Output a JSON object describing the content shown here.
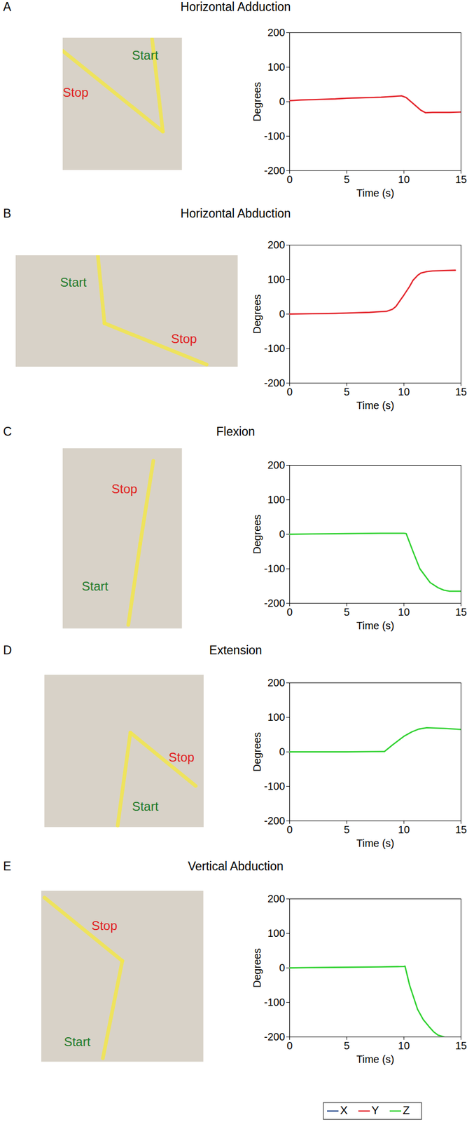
{
  "chart_data": [
    {
      "type": "line",
      "panel_label": "A",
      "title": "Horizontal Adduction",
      "xlabel": "Time (s)",
      "ylabel": "Degrees",
      "photo_labels": {
        "start": "Start",
        "stop": "Stop"
      },
      "x": [
        0,
        1,
        2,
        3,
        4,
        5,
        6,
        7,
        8,
        9,
        9.8,
        10.2,
        10.8,
        11.5,
        11.9,
        12.5,
        13,
        14,
        15
      ],
      "series": [
        {
          "name": "Y",
          "color": "#e3242b",
          "values": [
            3,
            5,
            6,
            7,
            8,
            10,
            11,
            12,
            13,
            15,
            17,
            12,
            -5,
            -25,
            -32,
            -31,
            -31,
            -31,
            -30
          ]
        }
      ],
      "xlim": [
        0,
        15
      ],
      "ylim": [
        -200,
        200
      ],
      "xticks": [
        0,
        5,
        10,
        15
      ],
      "yticks": [
        -200,
        -100,
        0,
        100,
        200
      ]
    },
    {
      "type": "line",
      "panel_label": "B",
      "title": "Horizontal Abduction",
      "xlabel": "Time (s)",
      "ylabel": "Degrees",
      "photo_labels": {
        "start": "Start",
        "stop": "Stop"
      },
      "x": [
        0,
        2,
        4,
        5,
        7,
        8,
        8.5,
        9,
        9.3,
        10,
        10.5,
        10.8,
        11.2,
        11.5,
        12,
        12.5,
        13.5,
        14.5
      ],
      "series": [
        {
          "name": "Y",
          "color": "#e3242b",
          "values": [
            0,
            1,
            2,
            3,
            5,
            7,
            8,
            14,
            22,
            55,
            80,
            98,
            112,
            119,
            123,
            125,
            126,
            127
          ]
        }
      ],
      "xlim": [
        0,
        15
      ],
      "ylim": [
        -200,
        200
      ],
      "xticks": [
        0,
        5,
        10,
        15
      ],
      "yticks": [
        -200,
        -100,
        0,
        100,
        200
      ]
    },
    {
      "type": "line",
      "panel_label": "C",
      "title": "Flexion",
      "xlabel": "Time (s)",
      "ylabel": "Degrees",
      "photo_labels": {
        "start": "Start",
        "stop": "Stop"
      },
      "x": [
        0,
        2,
        5,
        8,
        10,
        10.2,
        10.8,
        11.4,
        12.3,
        13,
        13.5,
        14,
        15
      ],
      "series": [
        {
          "name": "Z",
          "color": "#2ed12e",
          "values": [
            0,
            1,
            2,
            3,
            3,
            2,
            -50,
            -100,
            -140,
            -155,
            -162,
            -165,
            -165
          ]
        }
      ],
      "xlim": [
        0,
        15
      ],
      "ylim": [
        -200,
        200
      ],
      "xticks": [
        0,
        5,
        10,
        15
      ],
      "yticks": [
        -200,
        -100,
        0,
        100,
        200
      ]
    },
    {
      "type": "line",
      "panel_label": "D",
      "title": "Extension",
      "xlabel": "Time (s)",
      "ylabel": "Degrees",
      "photo_labels": {
        "start": "Start",
        "stop": "Stop"
      },
      "x": [
        0,
        2,
        5,
        8,
        8.3,
        9,
        10,
        10.7,
        11.3,
        12,
        13.5,
        15
      ],
      "series": [
        {
          "name": "Z",
          "color": "#2ed12e",
          "values": [
            0,
            0,
            0,
            1,
            1,
            20,
            45,
            58,
            66,
            70,
            68,
            65
          ]
        }
      ],
      "xlim": [
        0,
        15
      ],
      "ylim": [
        -200,
        200
      ],
      "xticks": [
        0,
        5,
        10,
        15
      ],
      "yticks": [
        -200,
        -100,
        0,
        100,
        200
      ]
    },
    {
      "type": "line",
      "panel_label": "E",
      "title": "Vertical Abduction",
      "xlabel": "Time (s)",
      "ylabel": "Degrees",
      "photo_labels": {
        "start": "Start",
        "stop": "Stop"
      },
      "x": [
        0,
        2,
        5,
        8,
        10,
        10.1,
        10.5,
        11.2,
        11.7,
        12.2,
        12.6,
        13,
        13.5
      ],
      "series": [
        {
          "name": "Z",
          "color": "#2ed12e",
          "values": [
            0,
            1,
            2,
            3,
            4,
            5,
            -50,
            -120,
            -150,
            -170,
            -185,
            -195,
            -200
          ]
        }
      ],
      "xlim": [
        0,
        15
      ],
      "ylim": [
        -200,
        200
      ],
      "xticks": [
        0,
        5,
        10,
        15
      ],
      "yticks": [
        -200,
        -100,
        0,
        100,
        200
      ]
    }
  ],
  "figure_legend": [
    {
      "name": "X",
      "color": "#2a4d8f"
    },
    {
      "name": "Y",
      "color": "#e3242b"
    },
    {
      "name": "Z",
      "color": "#2ed12e"
    }
  ]
}
